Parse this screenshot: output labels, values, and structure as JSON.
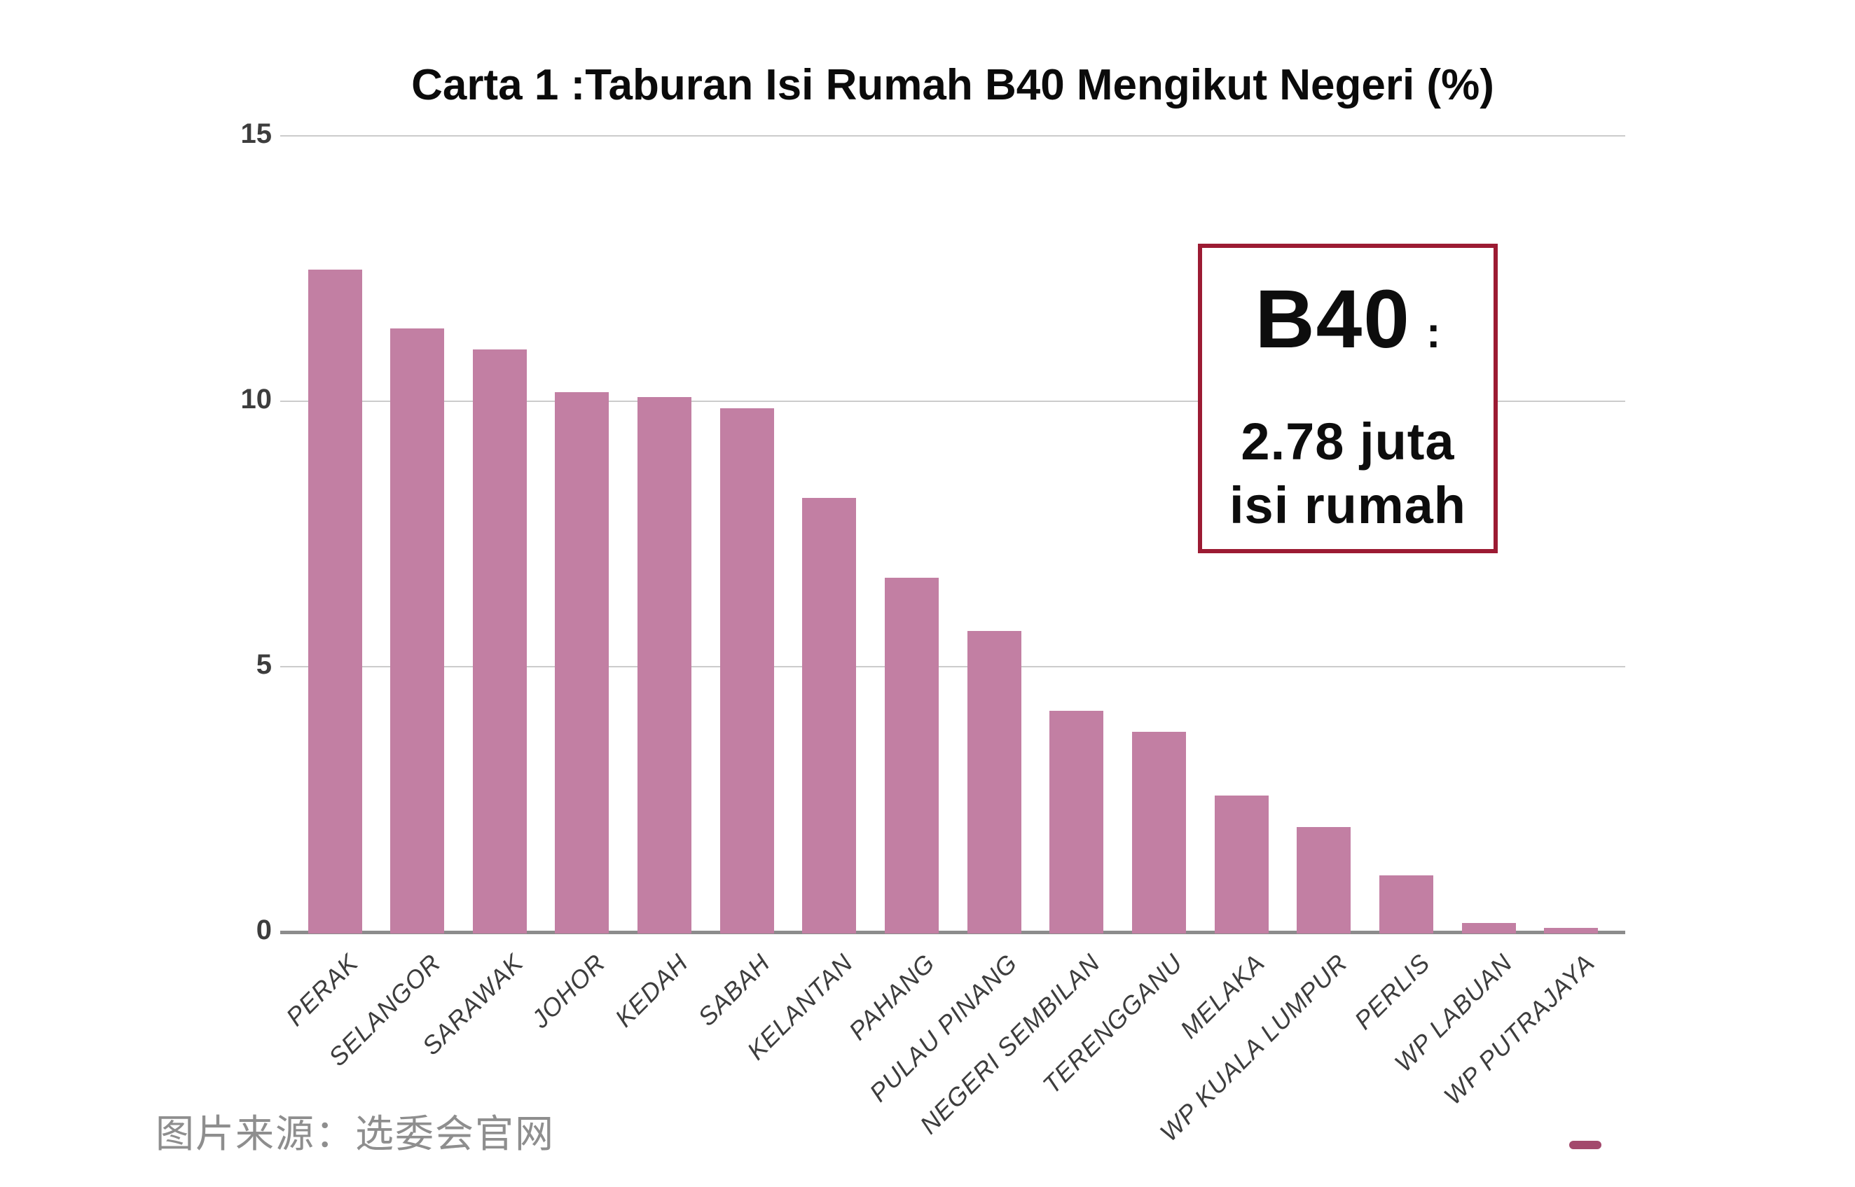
{
  "page": {
    "background": "#ffffff"
  },
  "chart_data": {
    "type": "bar",
    "title": "Carta 1 :Taburan Isi Rumah B40 Mengikut Negeri (%)",
    "categories": [
      "PERAK",
      "SELANGOR",
      "SARAWAK",
      "JOHOR",
      "KEDAH",
      "SABAH",
      "KELANTAN",
      "PAHANG",
      "PULAU PINANG",
      "NEGERI SEMBILAN",
      "TERENGGANU",
      "MELAKA",
      "WP KUALA LUMPUR",
      "PERLIS",
      "WP LABUAN",
      "WP PUTRAJAYA"
    ],
    "values": [
      12.5,
      11.4,
      11.0,
      10.2,
      10.1,
      9.9,
      8.2,
      6.7,
      5.7,
      4.2,
      3.8,
      2.6,
      2.0,
      1.1,
      0.2,
      0.1
    ],
    "xlabel": "",
    "ylabel": "",
    "ylim": [
      0,
      15
    ],
    "yticks": [
      0,
      5,
      10,
      15
    ],
    "grid": true,
    "legend": "none",
    "bar_color": "#c27fa3",
    "gridline_color": "#cccccc",
    "axis_color": "#8c8c8c",
    "tick_label_color": "#3d3d3d"
  },
  "annotation_box": {
    "heading": "B40",
    "colon": ":",
    "value_line": "2.78 juta",
    "unit_line": "isi rumah",
    "border_color": "#9c1b33",
    "text_color": "#0d0d0d"
  },
  "caption": {
    "text": "图片来源：选委会官网",
    "color": "#8e8e8e"
  },
  "decor": {
    "pink_dash_color": "#a3496c"
  }
}
